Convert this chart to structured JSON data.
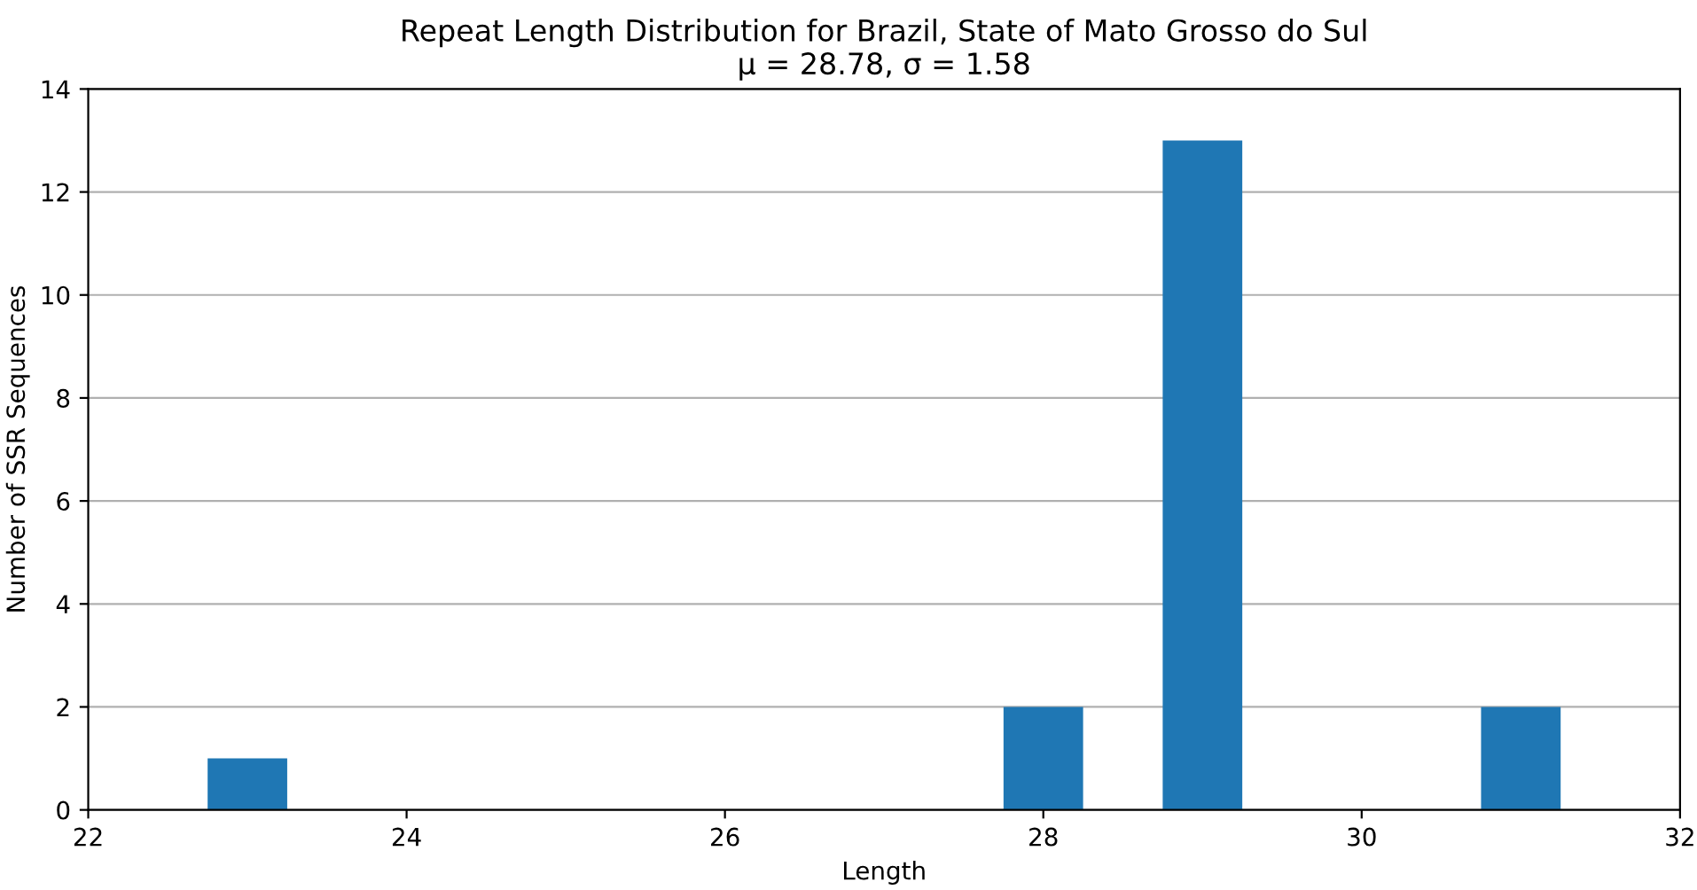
{
  "chart_data": {
    "type": "histogram",
    "title": "Repeat Length Distribution for Brazil, State of Mato Grosso do Sul",
    "subtitle": "μ = 28.78, σ = 1.58",
    "xlabel": "Length",
    "ylabel": "Number of SSR Sequences",
    "bins": [
      22.75,
      23.25,
      23.75,
      24.25,
      24.75,
      25.25,
      25.75,
      26.25,
      26.75,
      27.25,
      27.75,
      28.25,
      28.75,
      29.25,
      29.75,
      30.25,
      30.75,
      31.25
    ],
    "values": [
      1,
      0,
      0,
      0,
      0,
      0,
      0,
      0,
      0,
      0,
      2,
      0,
      13,
      0,
      0,
      0,
      2
    ],
    "color": "#1f77b4",
    "xlim": [
      22,
      32
    ],
    "xticks": [
      22,
      24,
      26,
      28,
      30,
      32
    ],
    "ylim": [
      0,
      14
    ],
    "yticks": [
      0,
      2,
      4,
      6,
      8,
      10,
      12,
      14
    ],
    "grid": "y"
  }
}
